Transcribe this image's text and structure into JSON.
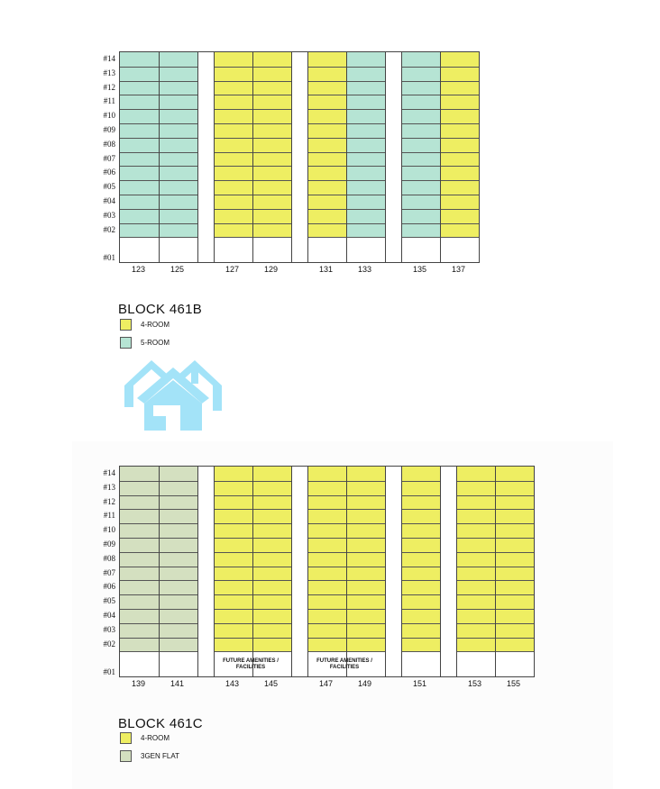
{
  "floors": [
    "#14",
    "#13",
    "#12",
    "#11",
    "#10",
    "#09",
    "#08",
    "#07",
    "#06",
    "#05",
    "#04",
    "#03",
    "#02",
    "#01"
  ],
  "colors": {
    "four_room": "#eeee62",
    "five_room": "#b6e4d4",
    "three_gen": "#d4e0c0",
    "house": "#a3e3f8"
  },
  "block_b": {
    "title": "BLOCK 461B",
    "units": [
      "123",
      "125",
      "127",
      "129",
      "131",
      "133",
      "135",
      "137"
    ],
    "types": [
      "5-ROOM",
      "5-ROOM",
      "4-ROOM",
      "4-ROOM",
      "4-ROOM",
      "5-ROOM",
      "5-ROOM",
      "4-ROOM"
    ],
    "legend": [
      {
        "label": "4-ROOM",
        "color": "#eeee62"
      },
      {
        "label": "5-ROOM",
        "color": "#b6e4d4"
      }
    ]
  },
  "block_c": {
    "title": "BLOCK 461C",
    "units": [
      "139",
      "141",
      "143",
      "145",
      "147",
      "149",
      "151",
      "153",
      "155"
    ],
    "types": [
      "3GEN FLAT",
      "3GEN FLAT",
      "4-ROOM",
      "4-ROOM",
      "4-ROOM",
      "4-ROOM",
      "4-ROOM",
      "4-ROOM",
      "4-ROOM"
    ],
    "amenities": [
      "FUTURE AMENITIES / FACILITIES",
      "FUTURE AMENITIES / FACILITIES"
    ],
    "legend": [
      {
        "label": "4-ROOM",
        "color": "#eeee62"
      },
      {
        "label": "3GEN FLAT",
        "color": "#d4e0c0"
      }
    ]
  },
  "icon": "house-icon"
}
